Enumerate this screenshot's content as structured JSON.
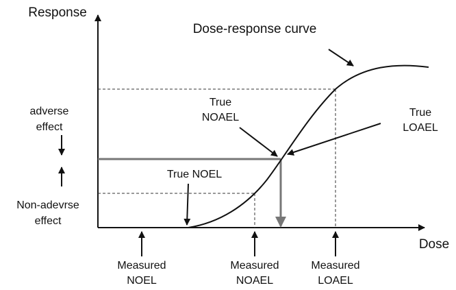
{
  "axes": {
    "y_label": "Response",
    "x_label": "Dose"
  },
  "curve_label": "Dose-response curve",
  "true_noael": [
    "True",
    "NOAEL"
  ],
  "true_loael": [
    "True",
    "LOAEL"
  ],
  "true_noel": "True NOEL",
  "adverse": [
    "adverse",
    "effect"
  ],
  "non_adverse": [
    "Non-adevrse",
    "effect"
  ],
  "measured": [
    [
      "Measured",
      "NOEL"
    ],
    [
      "Measured",
      "NOAEL"
    ],
    [
      "Measured",
      "LOAEL"
    ]
  ]
}
